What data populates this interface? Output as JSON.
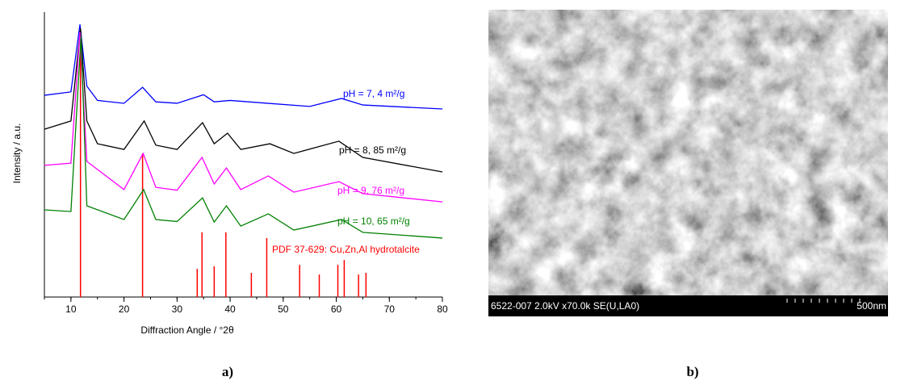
{
  "chart_data": {
    "type": "line",
    "xlabel": "Diffraction Angle / °2θ",
    "ylabel": "Intensity / a.u.",
    "xlim": [
      5,
      80
    ],
    "ylim": [
      0,
      100
    ],
    "xticks": [
      10,
      20,
      30,
      40,
      50,
      60,
      70,
      80
    ],
    "series": [
      {
        "name": "pH = 7, 4 m²/g",
        "color": "#0000ff",
        "x": [
          5,
          10,
          11.7,
          13,
          15,
          20,
          23.5,
          26,
          30,
          35,
          37,
          40,
          47,
          55,
          61,
          65,
          80
        ],
        "values": [
          70.8,
          72,
          95.7,
          74,
          69,
          68,
          73.6,
          68.5,
          68,
          71,
          68.5,
          69,
          68,
          66.9,
          69.7,
          67.4,
          66
        ]
      },
      {
        "name": "pH = 8, 85 m²/g",
        "color": "#000000",
        "x": [
          5,
          10,
          11.8,
          13,
          15,
          20,
          23.8,
          26,
          30,
          34.8,
          37,
          39.5,
          42,
          47.5,
          52,
          60.5,
          65,
          80
        ],
        "values": [
          58.9,
          61.8,
          94.3,
          61.8,
          53.8,
          51.8,
          61.8,
          53.3,
          51.8,
          61.2,
          53.8,
          57.5,
          51.8,
          53.8,
          50.4,
          54.7,
          49,
          43.9
        ]
      },
      {
        "name": "pH = 9, 76 m²/g",
        "color": "#ff00ff",
        "x": [
          5,
          10,
          11.7,
          13,
          20,
          23.6,
          26,
          30,
          34.7,
          37,
          39.3,
          42,
          47.2,
          52,
          60.5,
          65,
          80
        ],
        "values": [
          46.2,
          47,
          92.9,
          47.6,
          37.7,
          50.4,
          38.5,
          37.5,
          49,
          39.7,
          45.3,
          37.7,
          42.5,
          36.8,
          40.5,
          36.3,
          33.4
        ]
      },
      {
        "name": "pH = 10, 65 m²/g",
        "color": "#008000",
        "x": [
          5,
          10,
          11.9,
          13,
          20,
          23.7,
          26,
          30,
          34.8,
          37,
          39.3,
          42,
          47.2,
          52,
          61,
          65,
          80
        ],
        "values": [
          30.6,
          30,
          91.5,
          32,
          27.2,
          37.7,
          27.2,
          26.5,
          34.8,
          26.3,
          32,
          24.9,
          29.2,
          23.5,
          27.2,
          22.7,
          20.7
        ]
      }
    ],
    "reference": {
      "name": "PDF 37-629: Cu,Zn,Al hydrotalcite",
      "color": "#ff0000",
      "x": [
        11.8,
        23.5,
        33.8,
        34.7,
        37,
        39.2,
        44,
        46.9,
        53.1,
        56.8,
        60.3,
        61.5,
        64.2,
        65.6
      ],
      "values": [
        90,
        50.4,
        9.9,
        22.7,
        10.8,
        22.7,
        8.5,
        20.7,
        11.3,
        7.9,
        11.3,
        13,
        7.9,
        8.5
      ]
    }
  },
  "image": {
    "info": "6522-007 2.0kV x70.0k SE(U,LA0)",
    "scale": "500nm"
  },
  "captions": [
    "a)",
    "b)"
  ]
}
